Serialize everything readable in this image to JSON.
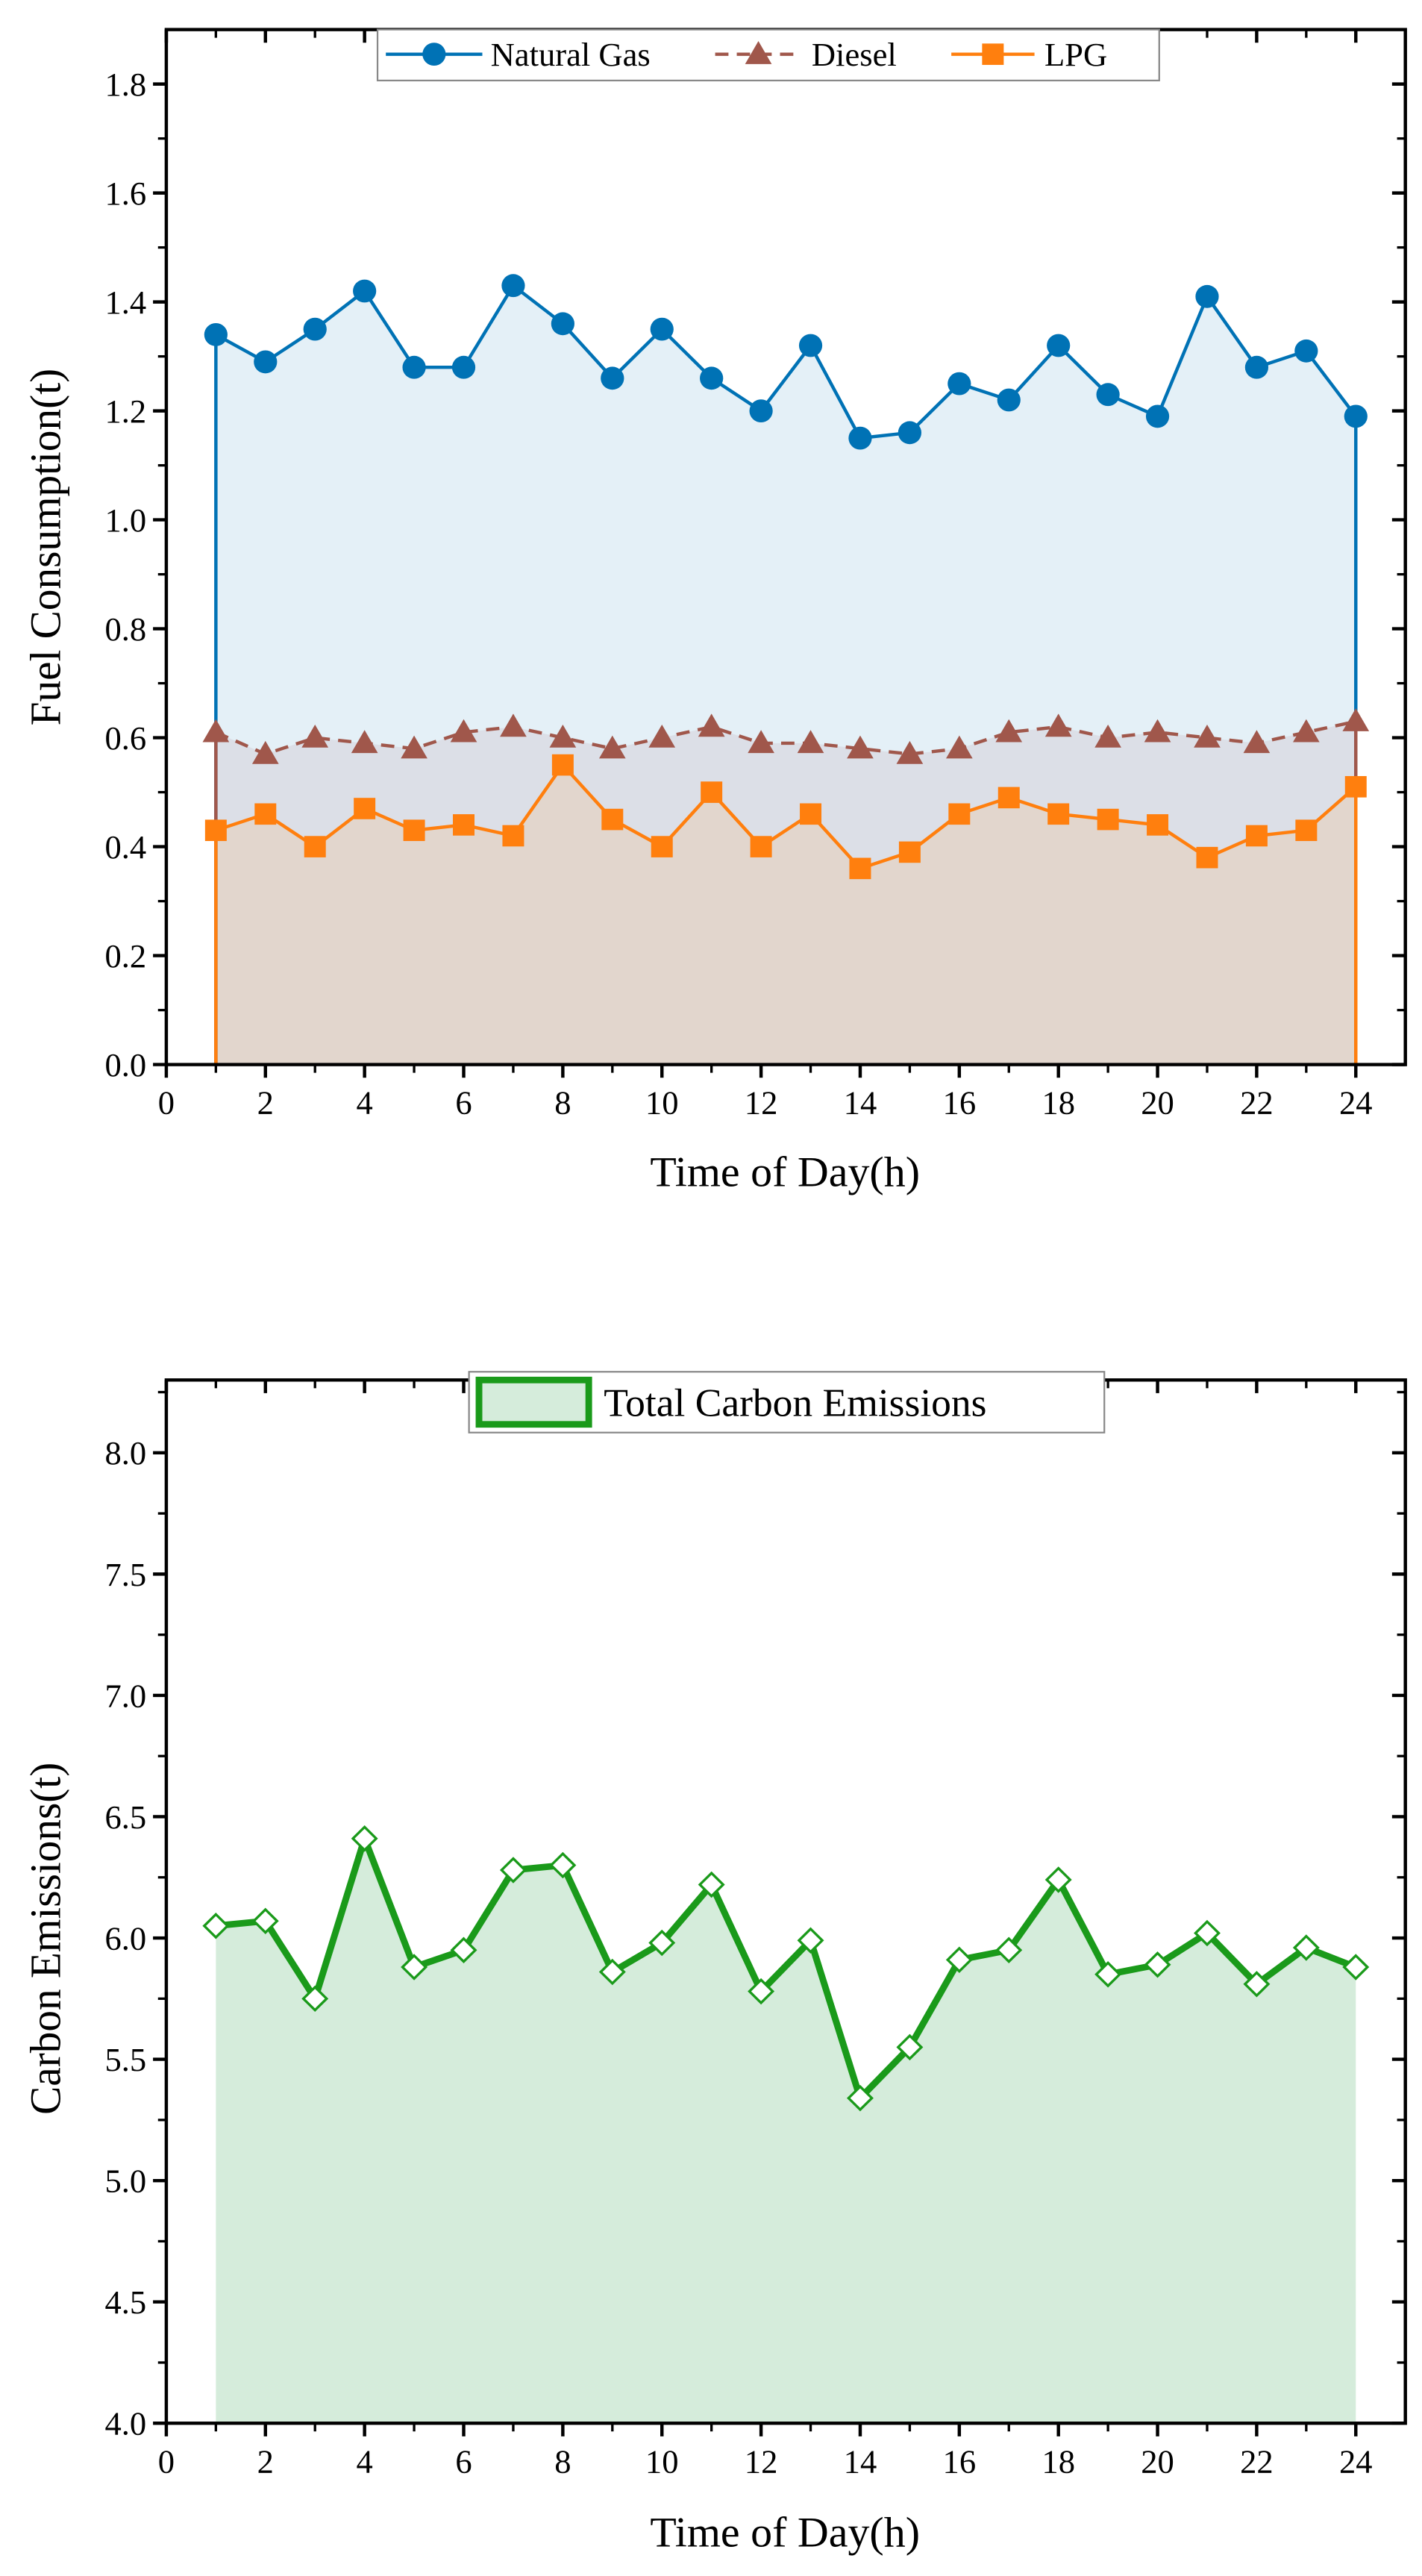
{
  "chart_data": [
    {
      "type": "area",
      "xlabel": "Time of Day(h)",
      "ylabel": "Fuel Consumption(t)",
      "xlim": [
        0,
        25
      ],
      "ylim": [
        0,
        1.9
      ],
      "xticks": [
        0,
        2,
        4,
        6,
        8,
        10,
        12,
        14,
        16,
        18,
        20,
        22,
        24
      ],
      "yticks": [
        "0.0",
        "0.2",
        "0.4",
        "0.6",
        "0.8",
        "1.0",
        "1.2",
        "1.4",
        "1.6",
        "1.8"
      ],
      "legend_position": "top-center",
      "x": [
        1,
        2,
        3,
        4,
        5,
        6,
        7,
        8,
        9,
        10,
        11,
        12,
        13,
        14,
        15,
        16,
        17,
        18,
        19,
        20,
        21,
        22,
        23,
        24
      ],
      "series": [
        {
          "name": "Natural Gas",
          "color": "#0072b5",
          "fill": "#e4f0f7",
          "marker": "circle",
          "values": [
            1.34,
            1.29,
            1.35,
            1.42,
            1.28,
            1.28,
            1.43,
            1.36,
            1.26,
            1.35,
            1.26,
            1.2,
            1.32,
            1.15,
            1.16,
            1.25,
            1.22,
            1.32,
            1.23,
            1.19,
            1.41,
            1.28,
            1.31,
            1.19
          ]
        },
        {
          "name": "Diesel",
          "color": "#a0574b",
          "fill": "#dcdfe7",
          "marker": "triangle",
          "values": [
            0.61,
            0.57,
            0.6,
            0.59,
            0.58,
            0.61,
            0.62,
            0.6,
            0.58,
            0.6,
            0.62,
            0.59,
            0.59,
            0.58,
            0.57,
            0.58,
            0.61,
            0.62,
            0.6,
            0.61,
            0.6,
            0.59,
            0.61,
            0.63
          ]
        },
        {
          "name": "LPG",
          "color": "#ff7f0e",
          "fill": "#e2d6cd",
          "marker": "square",
          "values": [
            0.43,
            0.46,
            0.4,
            0.47,
            0.43,
            0.44,
            0.42,
            0.55,
            0.45,
            0.4,
            0.5,
            0.4,
            0.46,
            0.36,
            0.39,
            0.46,
            0.49,
            0.46,
            0.45,
            0.44,
            0.38,
            0.42,
            0.43,
            0.51
          ]
        }
      ]
    },
    {
      "type": "area",
      "xlabel": "Time of Day(h)",
      "ylabel": "Carbon Emissions(t)",
      "xlim": [
        0,
        25
      ],
      "ylim": [
        4.0,
        8.3
      ],
      "xticks": [
        0,
        2,
        4,
        6,
        8,
        10,
        12,
        14,
        16,
        18,
        20,
        22,
        24
      ],
      "yticks": [
        "4.0",
        "4.5",
        "5.0",
        "5.5",
        "6.0",
        "6.5",
        "7.0",
        "7.5",
        "8.0"
      ],
      "legend_position": "top-center",
      "x": [
        1,
        2,
        3,
        4,
        5,
        6,
        7,
        8,
        9,
        10,
        11,
        12,
        13,
        14,
        15,
        16,
        17,
        18,
        19,
        20,
        21,
        22,
        23,
        24
      ],
      "series": [
        {
          "name": "Total Carbon Emissions",
          "color": "#1a9a1a",
          "fill": "#d5ecdb",
          "marker": "diamond-open",
          "values": [
            6.05,
            6.07,
            5.75,
            6.41,
            5.88,
            5.95,
            6.28,
            6.3,
            5.86,
            5.98,
            6.22,
            5.78,
            5.99,
            5.34,
            5.55,
            5.91,
            5.95,
            6.24,
            5.85,
            5.89,
            6.02,
            5.81,
            5.96,
            5.88
          ]
        }
      ]
    }
  ]
}
